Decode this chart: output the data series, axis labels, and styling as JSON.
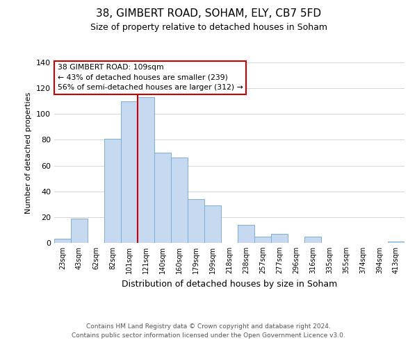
{
  "title": "38, GIMBERT ROAD, SOHAM, ELY, CB7 5FD",
  "subtitle": "Size of property relative to detached houses in Soham",
  "xlabel": "Distribution of detached houses by size in Soham",
  "ylabel": "Number of detached properties",
  "bar_color": "#c6d9f0",
  "bar_edge_color": "#7bafd4",
  "background_color": "#ffffff",
  "vline_color": "#cc0000",
  "categories": [
    "23sqm",
    "43sqm",
    "62sqm",
    "82sqm",
    "101sqm",
    "121sqm",
    "140sqm",
    "160sqm",
    "179sqm",
    "199sqm",
    "218sqm",
    "238sqm",
    "257sqm",
    "277sqm",
    "296sqm",
    "316sqm",
    "335sqm",
    "355sqm",
    "374sqm",
    "394sqm",
    "413sqm"
  ],
  "values": [
    3,
    19,
    0,
    81,
    110,
    113,
    70,
    66,
    34,
    29,
    0,
    14,
    5,
    7,
    0,
    5,
    0,
    0,
    0,
    0,
    1
  ],
  "annotation_line1": "38 GIMBERT ROAD: 109sqm",
  "annotation_line2": "← 43% of detached houses are smaller (239)",
  "annotation_line3": "56% of semi-detached houses are larger (312) →",
  "ylim": [
    0,
    140
  ],
  "yticks": [
    0,
    20,
    40,
    60,
    80,
    100,
    120,
    140
  ],
  "footer_line1": "Contains HM Land Registry data © Crown copyright and database right 2024.",
  "footer_line2": "Contains public sector information licensed under the Open Government Licence v3.0."
}
